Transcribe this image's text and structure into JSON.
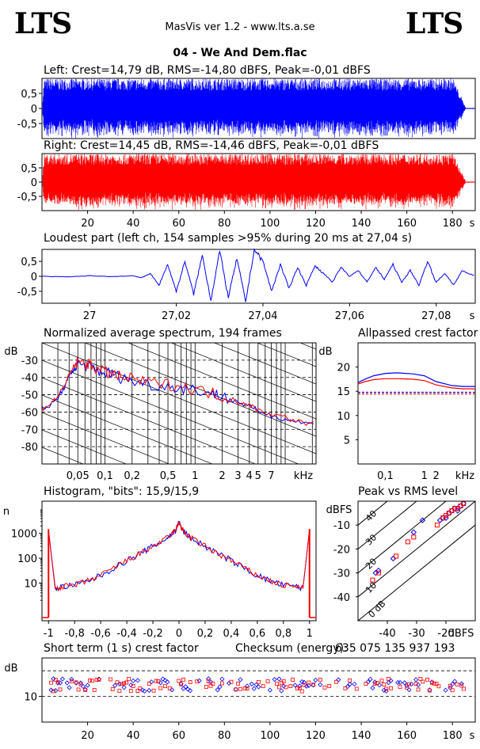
{
  "header": {
    "logo_left": "LTS",
    "logo_right": "LTS",
    "app_title": "MasVis ver 1.2 - www.lts.a.se",
    "file_title": "04 - We And Dem.flac"
  },
  "colors": {
    "left": "#0000ff",
    "right": "#ff0000",
    "axis": "#000000"
  },
  "chart_data": [
    {
      "id": "left_waveform",
      "type": "area",
      "title": "Left: Crest=14,79 dB, RMS=-14,80 dBFS, Peak=-0,01 dBFS",
      "ytick_labels": [
        "0,5",
        "0",
        "-0,5"
      ],
      "yticks": [
        0.5,
        0,
        -0.5
      ],
      "xlim": [
        0,
        190
      ],
      "ylim": [
        -1,
        1
      ],
      "duration_s": 186,
      "series": [
        {
          "color": "#0000ff"
        }
      ]
    },
    {
      "id": "right_waveform",
      "type": "area",
      "title": "Right: Crest=14,45 dB, RMS=-14,46 dBFS, Peak=-0,01 dBFS",
      "ytick_labels": [
        "0,5",
        "0",
        "-0,5"
      ],
      "yticks": [
        0.5,
        0,
        -0.5
      ],
      "xtick_labels": [
        "20",
        "40",
        "60",
        "80",
        "100",
        "120",
        "140",
        "160",
        "180"
      ],
      "xticks": [
        20,
        40,
        60,
        80,
        100,
        120,
        140,
        160,
        180
      ],
      "xunit": "s",
      "xlim": [
        0,
        190
      ],
      "ylim": [
        -1,
        1
      ],
      "duration_s": 186,
      "series": [
        {
          "color": "#ff0000"
        }
      ]
    },
    {
      "id": "loudest_part",
      "type": "line",
      "title": "Loudest part (left  ch, 154 samples >95% during 20 ms at 27,04 s)",
      "ytick_labels": [
        "0,5",
        "0",
        "-0,5"
      ],
      "yticks": [
        0.5,
        0,
        -0.5
      ],
      "xtick_labels": [
        "27",
        "27,02",
        "27,04",
        "27,06",
        "27,08"
      ],
      "xticks": [
        27.0,
        27.02,
        27.04,
        27.06,
        27.08
      ],
      "xunit": "s",
      "xlim": [
        26.989,
        27.089
      ],
      "ylim": [
        -0.9,
        0.9
      ],
      "x": [
        26.989,
        26.995,
        27.0,
        27.005,
        27.01,
        27.012,
        27.014,
        27.016,
        27.018,
        27.02,
        27.022,
        27.024,
        27.026,
        27.028,
        27.03,
        27.032,
        27.034,
        27.036,
        27.038,
        27.04,
        27.042,
        27.044,
        27.046,
        27.048,
        27.05,
        27.052,
        27.054,
        27.056,
        27.058,
        27.06,
        27.062,
        27.064,
        27.066,
        27.068,
        27.07,
        27.072,
        27.074,
        27.076,
        27.078,
        27.08,
        27.082,
        27.084,
        27.086,
        27.089
      ],
      "values": [
        0.0,
        -0.02,
        0.02,
        -0.01,
        0.02,
        -0.05,
        0.1,
        -0.3,
        0.4,
        -0.5,
        0.5,
        -0.6,
        0.7,
        -0.8,
        0.85,
        -0.7,
        0.6,
        -0.85,
        0.9,
        0.5,
        -0.5,
        0.4,
        -0.4,
        0.3,
        -0.3,
        0.35,
        0.1,
        -0.2,
        0.3,
        0.0,
        0.2,
        -0.2,
        0.3,
        -0.1,
        0.4,
        -0.2,
        0.2,
        -0.3,
        0.5,
        -0.2,
        0.1,
        -0.3,
        0.2,
        0.0
      ],
      "series": [
        {
          "color": "#0000ff"
        }
      ]
    },
    {
      "id": "avg_spectrum",
      "type": "line",
      "title": "Normalized average spectrum, 194 frames",
      "ylabel": "dB",
      "xunit": "kHz",
      "ytick_labels": [
        "-30",
        "-40",
        "-50",
        "-60",
        "-70",
        "-80"
      ],
      "yticks": [
        -30,
        -40,
        -50,
        -60,
        -70,
        -80
      ],
      "xtick_labels": [
        "0,05",
        "0,1",
        "0,2",
        "0,5",
        "1",
        "2",
        "3",
        "4",
        "5",
        "7"
      ],
      "xticks": [
        0.05,
        0.1,
        0.2,
        0.5,
        1,
        2,
        3,
        4,
        5,
        7
      ],
      "xscale": "log",
      "xlim": [
        0.02,
        22
      ],
      "ylim": [
        -90,
        -20
      ],
      "x": [
        0.02,
        0.025,
        0.03,
        0.035,
        0.04,
        0.045,
        0.05,
        0.06,
        0.07,
        0.08,
        0.1,
        0.12,
        0.15,
        0.2,
        0.3,
        0.5,
        0.7,
        1,
        1.5,
        2,
        3,
        4,
        5,
        7,
        10,
        15,
        22
      ],
      "series": [
        {
          "color": "#0000ff",
          "values": [
            -58,
            -56,
            -52,
            -46,
            -40,
            -35,
            -32,
            -33,
            -34,
            -36,
            -37,
            -38,
            -40,
            -42,
            -44,
            -45,
            -46,
            -47,
            -49,
            -51,
            -54,
            -57,
            -59,
            -62,
            -64,
            -66,
            -67
          ]
        },
        {
          "color": "#ff0000",
          "values": [
            -58,
            -55,
            -51,
            -45,
            -39,
            -34,
            -31,
            -32,
            -33,
            -35,
            -37,
            -38,
            -40,
            -41,
            -43,
            -44,
            -45,
            -47,
            -49,
            -51,
            -54,
            -56,
            -59,
            -61,
            -63,
            -66,
            -67
          ]
        }
      ]
    },
    {
      "id": "allpassed_crest",
      "type": "line",
      "title": "Allpassed crest factor",
      "ylabel": "dB",
      "xunit": "kHz",
      "ytick_labels": [
        "20",
        "15",
        "10",
        "5"
      ],
      "yticks": [
        20,
        15,
        10,
        5
      ],
      "xtick_labels": [
        "0,1",
        "1",
        "2"
      ],
      "xticks": [
        0.1,
        1,
        2
      ],
      "xscale": "log",
      "xlim": [
        0.02,
        20
      ],
      "ylim": [
        0,
        25
      ],
      "x": [
        0.02,
        0.03,
        0.05,
        0.1,
        0.2,
        0.5,
        1,
        2,
        5,
        10,
        20
      ],
      "series": [
        {
          "color": "#0000ff",
          "values": [
            16.8,
            17.5,
            18.2,
            18.7,
            18.8,
            18.6,
            18.2,
            17.0,
            16.2,
            16.0,
            16.0
          ]
        },
        {
          "color": "#ff0000",
          "values": [
            16.5,
            17.0,
            17.4,
            17.6,
            17.6,
            17.5,
            17.2,
            16.3,
            15.7,
            15.5,
            15.5
          ]
        }
      ],
      "reference_lines": [
        14.79,
        14.45
      ]
    },
    {
      "id": "histogram",
      "type": "line",
      "title": "Histogram, \"bits\": 15,9/15,9",
      "ylabel": "n",
      "ytick_labels": [
        "1000",
        "100",
        "10"
      ],
      "yticks": [
        1000,
        100,
        10
      ],
      "xtick_labels": [
        "-1",
        "-0,8",
        "-0,6",
        "-0,4",
        "-0,2",
        "0",
        "0,2",
        "0,4",
        "0,6",
        "0,8",
        "1"
      ],
      "xticks": [
        -1,
        -0.8,
        -0.6,
        -0.4,
        -0.2,
        0,
        0.2,
        0.4,
        0.6,
        0.8,
        1
      ],
      "yscale": "log",
      "xlim": [
        -1.05,
        1.05
      ],
      "ylim": [
        0.3,
        20000
      ],
      "x": [
        -1.0,
        -0.95,
        -0.9,
        -0.8,
        -0.7,
        -0.6,
        -0.5,
        -0.4,
        -0.3,
        -0.2,
        -0.1,
        -0.05,
        -0.02,
        0,
        0.02,
        0.05,
        0.1,
        0.2,
        0.3,
        0.4,
        0.5,
        0.6,
        0.7,
        0.8,
        0.9,
        0.95,
        1.0
      ],
      "series": [
        {
          "color": "#0000ff",
          "values": [
            1500,
            6,
            7,
            8,
            12,
            20,
            40,
            80,
            150,
            300,
            600,
            1000,
            1500,
            3000,
            1500,
            1000,
            600,
            300,
            150,
            80,
            40,
            20,
            12,
            8,
            7,
            6,
            1500
          ]
        },
        {
          "color": "#ff0000",
          "values": [
            1500,
            6,
            7,
            8,
            12,
            20,
            40,
            80,
            150,
            300,
            600,
            1000,
            1500,
            3000,
            1500,
            1000,
            600,
            300,
            150,
            80,
            40,
            20,
            12,
            8,
            7,
            6,
            1500
          ]
        }
      ]
    },
    {
      "id": "peak_vs_rms",
      "type": "scatter",
      "title": "Peak vs RMS level",
      "ylabel": "dBFS",
      "xunit": "dBFS",
      "ytick_labels": [
        "-10",
        "-20",
        "-30",
        "-40"
      ],
      "yticks": [
        -10,
        -20,
        -30,
        -40
      ],
      "xtick_labels": [
        "-40",
        "-30",
        "-20"
      ],
      "xticks": [
        -40,
        -30,
        -20
      ],
      "xlim": [
        -50,
        -10
      ],
      "ylim": [
        -50,
        0
      ],
      "crest_line_labels": [
        "40",
        "30",
        "20",
        "10",
        "0 dB"
      ],
      "crest_lines": [
        40,
        30,
        20,
        10,
        0
      ],
      "series": [
        {
          "color": "#0000ff",
          "x": [
            -44,
            -43,
            -38,
            -31,
            -28,
            -22,
            -21,
            -20,
            -19,
            -18,
            -17,
            -16,
            -15,
            -16,
            -14
          ],
          "y": [
            -30,
            -29,
            -24,
            -13,
            -8,
            -8,
            -7,
            -7,
            -5,
            -4,
            -3,
            -3,
            -2,
            -4,
            -1
          ]
        },
        {
          "color": "#ff0000",
          "x": [
            -45,
            -43,
            -37,
            -33,
            -31,
            -23,
            -21,
            -20,
            -19,
            -18,
            -17,
            -16,
            -15,
            -14
          ],
          "y": [
            -33,
            -30,
            -23,
            -17,
            -15,
            -10,
            -7,
            -6,
            -5,
            -4,
            -3,
            -3,
            -2,
            -1
          ]
        }
      ]
    },
    {
      "id": "short_term_crest",
      "type": "scatter",
      "title": "Short term (1 s) crest factor",
      "ylabel": "dB",
      "ytick_labels": [
        "10"
      ],
      "yticks": [
        10
      ],
      "xtick_labels": [
        "20",
        "40",
        "60",
        "80",
        "100",
        "120",
        "140",
        "160",
        "180"
      ],
      "xticks": [
        20,
        40,
        60,
        80,
        100,
        120,
        140,
        160,
        180
      ],
      "xunit": "s",
      "xlim": [
        0,
        190
      ],
      "ylim": [
        0,
        25
      ],
      "reference_lines": [
        20,
        10
      ],
      "series": [
        {
          "color": "#0000ff",
          "range": [
            12,
            17
          ]
        },
        {
          "color": "#ff0000",
          "range": [
            12,
            17
          ]
        }
      ]
    }
  ],
  "checksum": {
    "label": "Checksum (energy):",
    "value": "635 075 135 937 193"
  }
}
